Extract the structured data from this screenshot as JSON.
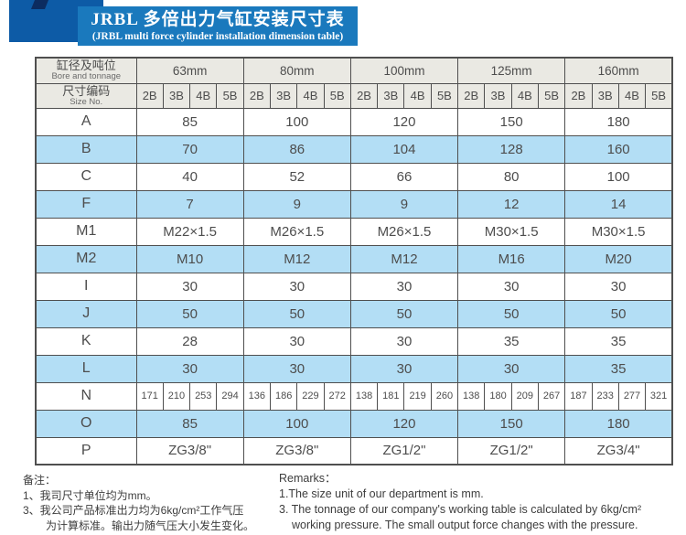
{
  "banner": {
    "title_zh": "JRBL 多倍出力气缸安装尺寸表",
    "title_en": "(JRBL multi force cylinder installation dimension table)"
  },
  "table": {
    "corner_zh": "缸径及吨位",
    "corner_en": "Bore and tonnage",
    "sizeno_zh": "尺寸编码",
    "sizeno_en": "Size No.",
    "bores": [
      "63mm",
      "80mm",
      "100mm",
      "125mm",
      "160mm"
    ],
    "sub_cols": [
      "2B",
      "3B",
      "4B",
      "5B"
    ],
    "rows": [
      {
        "label": "A",
        "cells": [
          "85",
          "100",
          "120",
          "150",
          "180"
        ]
      },
      {
        "label": "B",
        "cells": [
          "70",
          "86",
          "104",
          "128",
          "160"
        ]
      },
      {
        "label": "C",
        "cells": [
          "40",
          "52",
          "66",
          "80",
          "100"
        ]
      },
      {
        "label": "F",
        "cells": [
          "7",
          "9",
          "9",
          "12",
          "14"
        ]
      },
      {
        "label": "M1",
        "cells": [
          "M22×1.5",
          "M26×1.5",
          "M26×1.5",
          "M30×1.5",
          "M30×1.5"
        ]
      },
      {
        "label": "M2",
        "cells": [
          "M10",
          "M12",
          "M12",
          "M16",
          "M20"
        ]
      },
      {
        "label": "I",
        "cells": [
          "30",
          "30",
          "30",
          "30",
          "30"
        ]
      },
      {
        "label": "J",
        "cells": [
          "50",
          "50",
          "50",
          "50",
          "50"
        ]
      },
      {
        "label": "K",
        "cells": [
          "28",
          "30",
          "30",
          "35",
          "35"
        ]
      },
      {
        "label": "L",
        "cells": [
          "30",
          "30",
          "30",
          "30",
          "35"
        ]
      },
      {
        "label": "N",
        "cells": [
          "171",
          "210",
          "253",
          "294",
          "136",
          "186",
          "229",
          "272",
          "138",
          "181",
          "219",
          "260",
          "138",
          "180",
          "209",
          "267",
          "187",
          "233",
          "277",
          "321"
        ]
      },
      {
        "label": "O",
        "cells": [
          "85",
          "100",
          "120",
          "150",
          "180"
        ]
      },
      {
        "label": "P",
        "cells": [
          "ZG3/8\"",
          "ZG3/8\"",
          "ZG1/2\"",
          "ZG1/2\"",
          "ZG3/4\""
        ]
      }
    ]
  },
  "notes_zh": {
    "heading": "备注：",
    "line1": "1、我司尺寸单位均为mm。",
    "line2a": "3、我公司产品标准出力均为6kg/cm²工作气压",
    "line2b": "为计算标准。输出力随气压大小发生变化。"
  },
  "notes_en": {
    "heading": "Remarks：",
    "line1": "1.The size unit of our department is mm.",
    "line2a": "3. The tonnage of our company's working table is calculated by 6kg/cm²",
    "line2b": "working pressure. The small output force changes with the pressure."
  },
  "colors": {
    "banner_blue": "#1a79bd",
    "banner_dark_square": "#0d5ba6",
    "banner_notch_navy": "#0c2c60",
    "header_gray": "#eae9e3",
    "row_blue": "#b3def5",
    "border_gray": "#4f4f4f",
    "text_gray": "#4d4d4d"
  }
}
